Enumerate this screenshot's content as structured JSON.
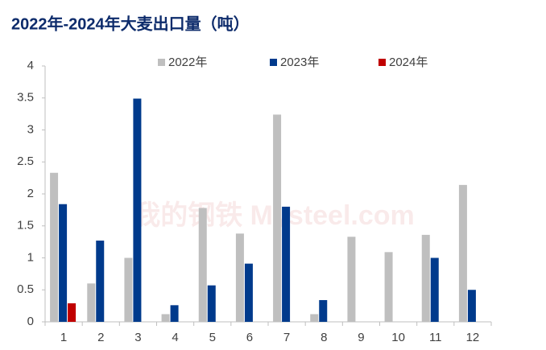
{
  "chart_data": {
    "type": "bar",
    "title": "2022年-2024年大麦出口量（吨）",
    "watermark": "我的钢铁 Mysteel.com",
    "categories": [
      "1",
      "2",
      "3",
      "4",
      "5",
      "6",
      "7",
      "8",
      "9",
      "10",
      "11",
      "12"
    ],
    "series": [
      {
        "name": "2022年",
        "color": "#bfbfbf",
        "values": [
          2.33,
          0.6,
          1.0,
          0.12,
          1.78,
          1.38,
          3.24,
          0.12,
          1.33,
          1.09,
          1.36,
          2.14
        ]
      },
      {
        "name": "2023年",
        "color": "#003a8c",
        "values": [
          1.84,
          1.27,
          3.49,
          0.26,
          0.57,
          0.91,
          1.8,
          0.34,
          null,
          null,
          1.0,
          0.5
        ]
      },
      {
        "name": "2024年",
        "color": "#c00000",
        "values": [
          0.29,
          null,
          null,
          null,
          null,
          null,
          null,
          null,
          null,
          null,
          null,
          null
        ]
      }
    ],
    "ylim": [
      0,
      4
    ],
    "yticks": [
      0,
      0.5,
      1,
      1.5,
      2,
      2.5,
      3,
      3.5,
      4
    ],
    "legend": "top"
  }
}
